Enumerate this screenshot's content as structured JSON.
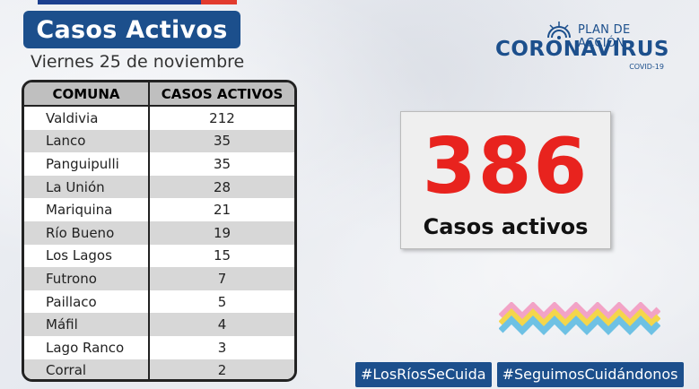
{
  "header": {
    "title": "Casos Activos",
    "date": "Viernes 25 de noviembre"
  },
  "table": {
    "columns": [
      "COMUNA",
      "CASOS ACTIVOS"
    ],
    "rows": [
      {
        "comuna": "Valdivia",
        "casos": "212"
      },
      {
        "comuna": "Lanco",
        "casos": "35"
      },
      {
        "comuna": "Panguipulli",
        "casos": "35"
      },
      {
        "comuna": "La Unión",
        "casos": "28"
      },
      {
        "comuna": "Mariquina",
        "casos": "21"
      },
      {
        "comuna": "Río Bueno",
        "casos": "19"
      },
      {
        "comuna": "Los Lagos",
        "casos": "15"
      },
      {
        "comuna": "Futrono",
        "casos": "7"
      },
      {
        "comuna": "Paillaco",
        "casos": "5"
      },
      {
        "comuna": "Máfil",
        "casos": "4"
      },
      {
        "comuna": "Lago Ranco",
        "casos": "3"
      },
      {
        "comuna": "Corral",
        "casos": "2"
      }
    ]
  },
  "logo": {
    "plan": "PLAN DE ACCIÓN",
    "name": "CORONAVIRUS",
    "sub": "COVID-19"
  },
  "summary": {
    "total": "386",
    "label": "Casos activos"
  },
  "hashtags": [
    "#LosRíosSeCuida",
    "#SeguimosCuidándonos"
  ],
  "colors": {
    "brand_blue": "#1c4f8c",
    "accent_red": "#e8231e",
    "row_alt": "#d7d7d7"
  }
}
